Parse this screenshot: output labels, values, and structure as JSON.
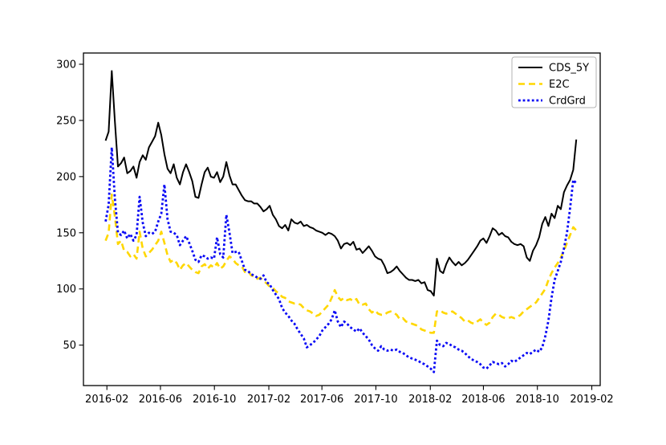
{
  "figure": {
    "background": "#ffffff",
    "title": ""
  },
  "chart_data": {
    "type": "line",
    "title": "",
    "xlabel": "",
    "ylabel": "",
    "grid": false,
    "legend_position": "upper right",
    "xlim": [
      "2015-12-10",
      "2019-02-20"
    ],
    "ylim": [
      14,
      310
    ],
    "x_ticks": [
      "2016-02-01",
      "2016-06-01",
      "2016-10-01",
      "2017-02-01",
      "2017-06-01",
      "2017-10-01",
      "2018-02-01",
      "2018-06-01",
      "2018-10-01",
      "2019-02-01"
    ],
    "x_tick_labels": [
      "2016-02",
      "2016-06",
      "2016-10",
      "2017-02",
      "2017-06",
      "2017-10",
      "2018-02",
      "2018-06",
      "2018-10",
      "2019-02"
    ],
    "y_ticks": [
      50,
      100,
      150,
      200,
      250,
      300
    ],
    "y_tick_labels": [
      "50",
      "100",
      "150",
      "200",
      "250",
      "300"
    ],
    "x": [
      "2016-01-29",
      "2016-02-05",
      "2016-02-12",
      "2016-02-19",
      "2016-02-26",
      "2016-03-04",
      "2016-03-11",
      "2016-03-18",
      "2016-03-25",
      "2016-04-01",
      "2016-04-08",
      "2016-04-15",
      "2016-04-22",
      "2016-04-29",
      "2016-05-06",
      "2016-05-13",
      "2016-05-20",
      "2016-05-27",
      "2016-06-03",
      "2016-06-10",
      "2016-06-17",
      "2016-06-24",
      "2016-07-01",
      "2016-07-08",
      "2016-07-15",
      "2016-07-22",
      "2016-07-29",
      "2016-08-05",
      "2016-08-12",
      "2016-08-19",
      "2016-08-26",
      "2016-09-02",
      "2016-09-09",
      "2016-09-16",
      "2016-09-23",
      "2016-09-30",
      "2016-10-07",
      "2016-10-14",
      "2016-10-21",
      "2016-10-28",
      "2016-11-04",
      "2016-11-11",
      "2016-11-18",
      "2016-11-25",
      "2016-12-02",
      "2016-12-09",
      "2016-12-16",
      "2016-12-23",
      "2016-12-30",
      "2017-01-06",
      "2017-01-13",
      "2017-01-20",
      "2017-01-27",
      "2017-02-03",
      "2017-02-10",
      "2017-02-17",
      "2017-02-24",
      "2017-03-03",
      "2017-03-10",
      "2017-03-17",
      "2017-03-24",
      "2017-03-31",
      "2017-04-07",
      "2017-04-14",
      "2017-04-21",
      "2017-04-28",
      "2017-05-05",
      "2017-05-12",
      "2017-05-19",
      "2017-05-26",
      "2017-06-02",
      "2017-06-09",
      "2017-06-16",
      "2017-06-23",
      "2017-06-30",
      "2017-07-07",
      "2017-07-14",
      "2017-07-21",
      "2017-07-28",
      "2017-08-04",
      "2017-08-11",
      "2017-08-18",
      "2017-08-25",
      "2017-09-01",
      "2017-09-08",
      "2017-09-15",
      "2017-09-22",
      "2017-09-29",
      "2017-10-06",
      "2017-10-13",
      "2017-10-20",
      "2017-10-27",
      "2017-11-03",
      "2017-11-10",
      "2017-11-17",
      "2017-11-24",
      "2017-12-01",
      "2017-12-08",
      "2017-12-15",
      "2017-12-22",
      "2017-12-29",
      "2018-01-05",
      "2018-01-12",
      "2018-01-19",
      "2018-01-26",
      "2018-02-02",
      "2018-02-09",
      "2018-02-16",
      "2018-02-23",
      "2018-03-02",
      "2018-03-09",
      "2018-03-16",
      "2018-03-23",
      "2018-03-30",
      "2018-04-06",
      "2018-04-13",
      "2018-04-20",
      "2018-04-27",
      "2018-05-04",
      "2018-05-11",
      "2018-05-18",
      "2018-05-25",
      "2018-06-01",
      "2018-06-08",
      "2018-06-15",
      "2018-06-22",
      "2018-06-29",
      "2018-07-06",
      "2018-07-13",
      "2018-07-20",
      "2018-07-27",
      "2018-08-03",
      "2018-08-10",
      "2018-08-17",
      "2018-08-24",
      "2018-08-31",
      "2018-09-07",
      "2018-09-14",
      "2018-09-21",
      "2018-09-28",
      "2018-10-05",
      "2018-10-12",
      "2018-10-19",
      "2018-10-26",
      "2018-11-02",
      "2018-11-09",
      "2018-11-16",
      "2018-11-23",
      "2018-11-30",
      "2018-12-07",
      "2018-12-14",
      "2018-12-21",
      "2018-12-28"
    ],
    "series": [
      {
        "name": "CDS_5Y",
        "color": "#000000",
        "style": "solid",
        "linewidth": 2,
        "values": [
          232,
          240,
          294,
          250,
          209,
          212,
          217,
          203,
          205,
          209,
          199,
          213,
          219,
          215,
          226,
          231,
          236,
          248,
          237,
          220,
          207,
          203,
          211,
          199,
          193,
          204,
          211,
          204,
          196,
          182,
          181,
          193,
          204,
          208,
          200,
          199,
          204,
          195,
          200,
          213,
          201,
          193,
          193,
          188,
          183,
          179,
          178,
          178,
          176,
          176,
          173,
          169,
          171,
          174,
          166,
          162,
          156,
          154,
          157,
          152,
          162,
          159,
          158,
          160,
          156,
          157,
          155,
          154,
          152,
          151,
          150,
          148,
          150,
          149,
          147,
          143,
          136,
          140,
          141,
          139,
          142,
          135,
          136,
          132,
          135,
          138,
          134,
          129,
          127,
          126,
          121,
          114,
          115,
          117,
          120,
          116,
          113,
          110,
          108,
          108,
          107,
          108,
          105,
          106,
          99,
          98,
          94,
          127,
          116,
          114,
          122,
          128,
          124,
          121,
          124,
          121,
          123,
          126,
          130,
          134,
          138,
          143,
          145,
          141,
          147,
          154,
          152,
          148,
          150,
          147,
          146,
          142,
          140,
          139,
          140,
          138,
          128,
          125,
          134,
          139,
          146,
          158,
          164,
          156,
          167,
          163,
          174,
          171,
          186,
          192,
          197,
          206,
          233
        ]
      },
      {
        "name": "E2C",
        "color": "#ffd700",
        "style": "dashed",
        "linewidth": 2.6,
        "values": [
          143,
          150,
          184,
          165,
          140,
          143,
          134,
          133,
          129,
          131,
          127,
          151,
          136,
          129,
          132,
          135,
          139,
          143,
          151,
          141,
          130,
          124,
          126,
          123,
          117,
          121,
          123,
          120,
          117,
          115,
          114,
          120,
          122,
          118,
          121,
          119,
          123,
          118,
          120,
          125,
          129,
          127,
          123,
          121,
          120,
          115,
          116,
          112,
          111,
          109,
          110,
          107,
          105,
          102,
          101,
          98,
          96,
          93,
          92,
          89,
          88,
          87,
          87,
          86,
          83,
          81,
          80,
          78,
          76,
          77,
          80,
          83,
          86,
          92,
          99,
          93,
          90,
          92,
          90,
          91,
          89,
          91,
          86,
          86,
          87,
          82,
          79,
          81,
          78,
          77,
          77,
          79,
          80,
          79,
          77,
          73,
          74,
          71,
          70,
          69,
          68,
          67,
          64,
          63,
          62,
          61,
          61,
          80,
          81,
          79,
          78,
          79,
          80,
          78,
          76,
          74,
          71,
          72,
          70,
          69,
          71,
          73,
          70,
          68,
          70,
          75,
          78,
          77,
          75,
          74,
          74,
          75,
          74,
          75,
          77,
          80,
          82,
          84,
          86,
          88,
          92,
          96,
          100,
          108,
          114,
          119,
          123,
          128,
          134,
          141,
          148,
          155,
          152
        ]
      },
      {
        "name": "CrdGrd",
        "color": "#0909f5",
        "style": "dotted",
        "linewidth": 2.8,
        "values": [
          160,
          175,
          226,
          181,
          150,
          148,
          152,
          145,
          149,
          143,
          148,
          182,
          159,
          147,
          150,
          149,
          151,
          160,
          167,
          193,
          162,
          151,
          150,
          148,
          139,
          143,
          147,
          141,
          134,
          126,
          124,
          130,
          129,
          127,
          128,
          127,
          146,
          131,
          128,
          166,
          150,
          132,
          133,
          133,
          125,
          117,
          116,
          113,
          112,
          110,
          109,
          112,
          106,
          104,
          99,
          95,
          91,
          83,
          79,
          76,
          72,
          69,
          64,
          60,
          56,
          48,
          50,
          52,
          55,
          58,
          63,
          66,
          69,
          73,
          81,
          71,
          66,
          71,
          69,
          66,
          64,
          62,
          65,
          61,
          58,
          55,
          50,
          47,
          45,
          49,
          46,
          45,
          46,
          45,
          46,
          44,
          43,
          41,
          39,
          38,
          37,
          36,
          34,
          33,
          31,
          29,
          26,
          54,
          50,
          49,
          52,
          51,
          49,
          48,
          46,
          45,
          43,
          40,
          38,
          36,
          35,
          33,
          30,
          29,
          32,
          35,
          34,
          33,
          34,
          31,
          33,
          36,
          35,
          37,
          39,
          41,
          43,
          42,
          44,
          46,
          44,
          48,
          58,
          72,
          92,
          108,
          116,
          124,
          136,
          150,
          172,
          197,
          194
        ]
      }
    ]
  }
}
